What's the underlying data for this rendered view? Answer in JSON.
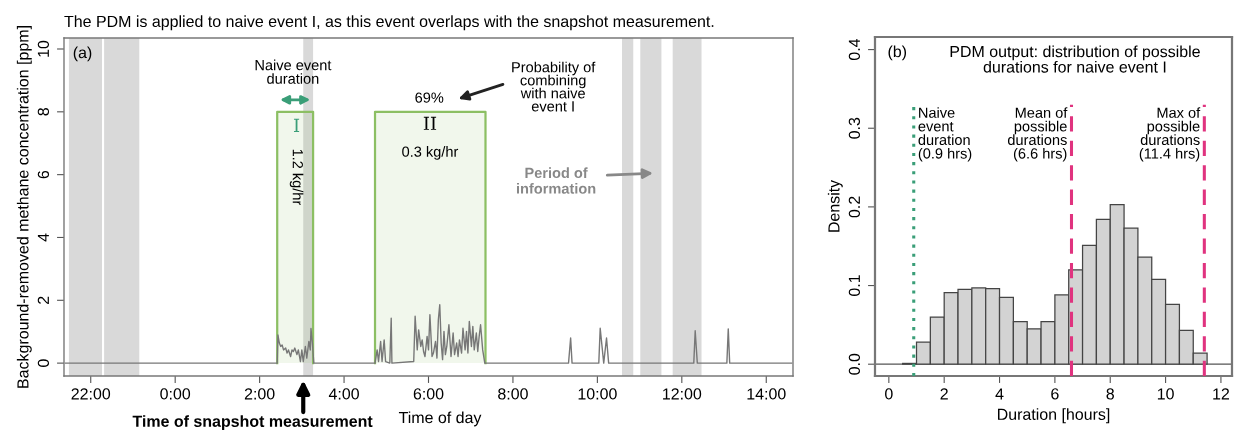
{
  "chart_data": [
    {
      "type": "line",
      "title": "The PDM is applied to naive event I, as this event overlaps with the snapshot measurement.",
      "xlabel": "Time of day",
      "ylabel": "Background-removed methane concentration [ppm]",
      "xlim": [
        "2000-01-01T21:22",
        "2000-01-02T14:38"
      ],
      "ylim": [
        -0.41,
        10.35
      ],
      "xticks": [
        {
          "value": "2000-01-01T22:00",
          "label": "22:00"
        },
        {
          "value": "2000-01-02T00:00",
          "label": "0:00"
        },
        {
          "value": "2000-01-02T02:00",
          "label": "2:00"
        },
        {
          "value": "2000-01-02T04:00",
          "label": "4:00"
        },
        {
          "value": "2000-01-02T06:00",
          "label": "6:00"
        },
        {
          "value": "2000-01-02T08:00",
          "label": "8:00"
        },
        {
          "value": "2000-01-02T10:00",
          "label": "10:00"
        },
        {
          "value": "2000-01-02T12:00",
          "label": "12:00"
        },
        {
          "value": "2000-01-02T14:00",
          "label": "14:00"
        }
      ],
      "yticks": [
        0,
        2,
        4,
        6,
        8,
        10
      ],
      "series": [
        {
          "type": "area",
          "color": "#8cbf63",
          "x": [
            "2000-01-02T02:25",
            "2000-01-02T03:16"
          ],
          "values": [
            8,
            8
          ]
        },
        {
          "type": "area",
          "color": "#8cbf63",
          "x": [
            "2000-01-02T04:44",
            "2000-01-02T07:21"
          ],
          "values": [
            8,
            8
          ]
        },
        {
          "type": "line",
          "color": "#777777",
          "x": [
            "2000-01-01T21:24",
            "2000-01-02T02:25",
            "2000-01-02T02:26",
            "2000-01-02T02:28",
            "2000-01-02T02:30",
            "2000-01-02T02:32",
            "2000-01-02T02:34",
            "2000-01-02T02:37",
            "2000-01-02T02:39",
            "2000-01-02T02:41",
            "2000-01-02T02:44",
            "2000-01-02T02:46",
            "2000-01-02T02:48",
            "2000-01-02T02:50",
            "2000-01-02T02:53",
            "2000-01-02T02:55",
            "2000-01-02T02:58",
            "2000-01-02T03:00",
            "2000-01-02T03:02",
            "2000-01-02T03:05",
            "2000-01-02T03:07",
            "2000-01-02T03:10",
            "2000-01-02T03:12",
            "2000-01-02T03:13",
            "2000-01-02T03:15",
            "2000-01-02T03:17",
            "2000-01-02T04:44",
            "2000-01-02T04:47",
            "2000-01-02T04:49",
            "2000-01-02T04:52",
            "2000-01-02T04:54",
            "2000-01-02T04:57",
            "2000-01-02T04:59",
            "2000-01-02T05:05",
            "2000-01-02T05:07",
            "2000-01-02T05:08",
            "2000-01-02T05:39",
            "2000-01-02T05:41",
            "2000-01-02T05:44",
            "2000-01-02T05:46",
            "2000-01-02T05:49",
            "2000-01-02T05:51",
            "2000-01-02T05:53",
            "2000-01-02T05:55",
            "2000-01-02T05:58",
            "2000-01-02T06:00",
            "2000-01-02T06:02",
            "2000-01-02T06:05",
            "2000-01-02T06:07",
            "2000-01-02T06:10",
            "2000-01-02T06:12",
            "2000-01-02T06:14",
            "2000-01-02T06:16",
            "2000-01-02T06:18",
            "2000-01-02T06:20",
            "2000-01-02T06:22",
            "2000-01-02T06:24",
            "2000-01-02T06:26",
            "2000-01-02T06:29",
            "2000-01-02T06:32",
            "2000-01-02T06:35",
            "2000-01-02T06:37",
            "2000-01-02T06:40",
            "2000-01-02T06:42",
            "2000-01-02T06:44",
            "2000-01-02T06:47",
            "2000-01-02T06:49",
            "2000-01-02T06:52",
            "2000-01-02T06:54",
            "2000-01-02T06:56",
            "2000-01-02T06:58",
            "2000-01-02T07:01",
            "2000-01-02T07:03",
            "2000-01-02T07:05",
            "2000-01-02T07:08",
            "2000-01-02T07:10",
            "2000-01-02T07:12",
            "2000-01-02T07:14",
            "2000-01-02T07:17",
            "2000-01-02T07:20",
            "2000-01-02T09:19",
            "2000-01-02T09:22",
            "2000-01-02T09:24",
            "2000-01-02T10:02",
            "2000-01-02T10:04",
            "2000-01-02T10:09",
            "2000-01-02T10:13",
            "2000-01-02T10:16",
            "2000-01-02T12:17",
            "2000-01-02T12:19",
            "2000-01-02T12:22",
            "2000-01-02T13:04",
            "2000-01-02T13:06",
            "2000-01-02T13:08",
            "2000-01-02T14:36"
          ],
          "values": [
            0,
            0,
            0.9,
            0.64,
            0.53,
            0.58,
            0.42,
            0.48,
            0.32,
            0.42,
            0.21,
            0.42,
            0.37,
            0.48,
            0.27,
            0.42,
            0.05,
            0.42,
            0.05,
            0.53,
            0.16,
            0.69,
            0.42,
            1.1,
            0.64,
            0,
            0,
            0.42,
            0.05,
            0.69,
            0.05,
            0.74,
            0.05,
            0,
            1.43,
            0,
            0.05,
            1.49,
            0.42,
            1.06,
            0.53,
            0.74,
            0.37,
            0.21,
            0.85,
            0.42,
            1.54,
            0.21,
            0.32,
            0.69,
            0.16,
            1.38,
            1.86,
            0.64,
            0.11,
            1.01,
            0.27,
            0.53,
            1.22,
            0.21,
            0.96,
            0.27,
            0.64,
            0.21,
            0.74,
            0.32,
            1.11,
            0.42,
            1.01,
            0.32,
            1.33,
            0.53,
            1.17,
            0.42,
            0.96,
            0.37,
            0.85,
            1.22,
            0.42,
            0,
            0,
            0.8,
            0,
            0,
            1.11,
            0,
            0.8,
            0,
            0,
            1.03,
            0,
            0,
            1.09,
            0,
            0
          ]
        }
      ],
      "bands": [
        {
          "axis": "x",
          "from": "2000-01-01T21:29",
          "to": "2000-01-01T22:16",
          "color": "#d9d9d9"
        },
        {
          "axis": "x",
          "from": "2000-01-01T22:19",
          "to": "2000-01-01T23:09",
          "color": "#d9d9d9"
        },
        {
          "axis": "x",
          "from": "2000-01-02T03:02",
          "to": "2000-01-02T03:16",
          "color": "#d9d9d9"
        },
        {
          "axis": "x",
          "from": "2000-01-02T10:35",
          "to": "2000-01-02T10:51",
          "color": "#d9d9d9"
        },
        {
          "axis": "x",
          "from": "2000-01-02T11:01",
          "to": "2000-01-02T11:31",
          "color": "#d9d9d9"
        },
        {
          "axis": "x",
          "from": "2000-01-02T11:47",
          "to": "2000-01-02T12:28",
          "color": "#d9d9d9"
        }
      ],
      "annotations": [
        "(a)",
        "Naive event\nduration",
        "I",
        "1.2 kg/hr",
        "II",
        "0.3 kg/hr",
        "69%",
        "Probability of\ncombining\nwith naive\nevent I",
        "Period of\ninformation",
        {
          "text": "Time of snapshot measurement",
          "x": "2000-01-02T03:02",
          "y": -0.41
        }
      ]
    },
    {
      "type": "histogram",
      "title": "PDM output: distribution of possible\ndurations for naive event I",
      "xlabel": "Duration [hours]",
      "ylabel": "Density",
      "color": "#d3d3d3",
      "bins": [
        0.5,
        1,
        1.5,
        2,
        2.5,
        3,
        3.5,
        4,
        4.5,
        5,
        5.5,
        6,
        6.5,
        7,
        7.5,
        8,
        8.5,
        9,
        9.5,
        10,
        10.5,
        11,
        11.5
      ],
      "values": [
        0.001,
        0.028,
        0.06,
        0.091,
        0.095,
        0.097,
        0.096,
        0.085,
        0.054,
        0.045,
        0.054,
        0.088,
        0.12,
        0.151,
        0.184,
        0.203,
        0.173,
        0.136,
        0.108,
        0.076,
        0.043,
        0.014
      ],
      "xlim": [
        -0.5,
        12.4
      ],
      "ylim": [
        -0.015,
        0.416
      ],
      "xticks": [
        0,
        2,
        4,
        6,
        8,
        10,
        12
      ],
      "yticks": [
        {
          "value": 0,
          "label": "0.0"
        },
        0.1,
        0.2,
        0.3,
        0.4
      ],
      "ref_lines": [
        {
          "axis": "x",
          "value": 0.9,
          "label": "Naive\nevent\nduration\n(0.9 hrs)",
          "color": "#3a9e78",
          "line_style": "dotted"
        },
        {
          "axis": "x",
          "value": 6.6,
          "label": "Mean of\npossible\ndurations\n(6.6 hrs)",
          "color": "#e0337f",
          "line_style": "dashed"
        },
        {
          "axis": "x",
          "value": 11.4,
          "label": "Max of\npossible\ndurations\n(11.4 hrs)",
          "color": "#e0337f",
          "line_style": "dashed"
        },
        {
          "axis": "y",
          "value": 0,
          "color": "#555555",
          "line_style": "solid"
        }
      ],
      "annotations": [
        "(b)"
      ]
    }
  ]
}
